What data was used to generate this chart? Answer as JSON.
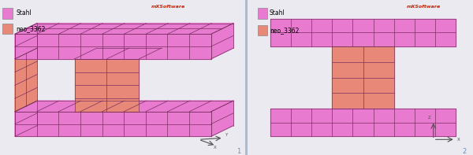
{
  "bg_color": "#eaeaf0",
  "panel_bg": "#f0f0f8",
  "divider_color": "#a8bcd4",
  "pink_color": "#e87ad0",
  "salmon_color": "#e88878",
  "grid_line_color": "#7a3060",
  "legend_stahl_color": "#e87ad0",
  "legend_neo_color": "#e88878",
  "logo_color": "#cc2200",
  "logo_text": "mXSoftware",
  "label_stahl": "Stahl",
  "label_neo": "neo_3362",
  "panel1_num": "1",
  "panel2_num": "2",
  "axis_color": "#505050",
  "figsize": [
    6.0,
    1.97
  ],
  "dpi": 100
}
